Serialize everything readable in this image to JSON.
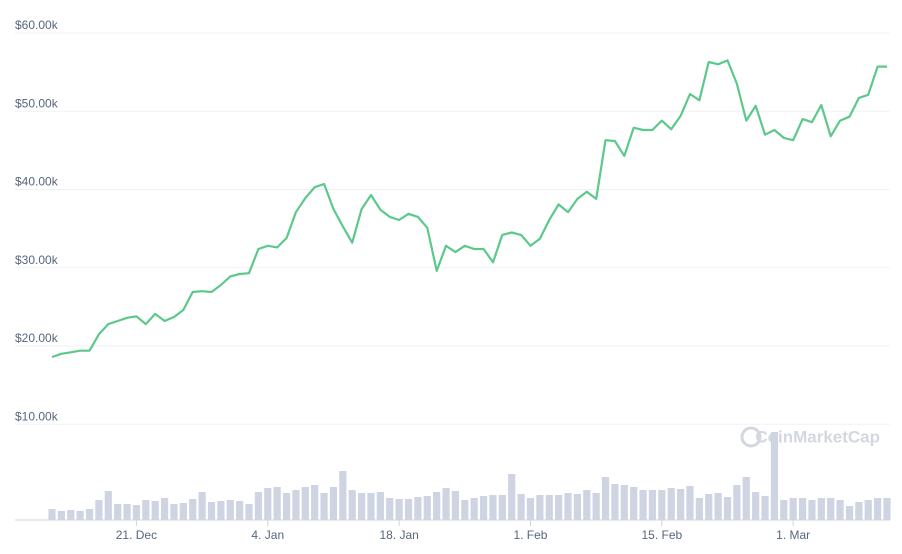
{
  "chart_data": {
    "type": "line",
    "categories": [
      "12. Dec",
      "13. Dec",
      "14. Dec",
      "15. Dec",
      "16. Dec",
      "17. Dec",
      "18. Dec",
      "19. Dec",
      "20. Dec",
      "21. Dec",
      "22. Dec",
      "23. Dec",
      "24. Dec",
      "25. Dec",
      "26. Dec",
      "27. Dec",
      "28. Dec",
      "29. Dec",
      "30. Dec",
      "31. Dec",
      "1. Jan",
      "2. Jan",
      "3. Jan",
      "4. Jan",
      "5. Jan",
      "6. Jan",
      "7. Jan",
      "8. Jan",
      "9. Jan",
      "10. Jan",
      "11. Jan",
      "12. Jan",
      "13. Jan",
      "14. Jan",
      "15. Jan",
      "16. Jan",
      "17. Jan",
      "18. Jan",
      "19. Jan",
      "20. Jan",
      "21. Jan",
      "22. Jan",
      "23. Jan",
      "24. Jan",
      "25. Jan",
      "26. Jan",
      "27. Jan",
      "28. Jan",
      "29. Jan",
      "30. Jan",
      "31. Jan",
      "1. Feb",
      "2. Feb",
      "3. Feb",
      "4. Feb",
      "5. Feb",
      "6. Feb",
      "7. Feb",
      "8. Feb",
      "9. Feb",
      "10. Feb",
      "11. Feb",
      "12. Feb",
      "13. Feb",
      "14. Feb",
      "15. Feb",
      "16. Feb",
      "17. Feb",
      "18. Feb",
      "19. Feb",
      "20. Feb",
      "21. Feb",
      "22. Feb",
      "23. Feb",
      "24. Feb",
      "25. Feb",
      "26. Feb",
      "27. Feb",
      "28. Feb",
      "1. Mar",
      "2. Mar",
      "3. Mar",
      "4. Mar",
      "5. Mar",
      "6. Mar",
      "7. Mar",
      "8. Mar",
      "9. Mar",
      "10. Mar",
      "11. Mar"
    ],
    "values": [
      18600,
      19000,
      19200,
      19400,
      19400,
      21500,
      22800,
      23200,
      23600,
      23800,
      22800,
      24100,
      23200,
      23700,
      24600,
      26900,
      27000,
      26900,
      27800,
      28900,
      29200,
      29300,
      32400,
      32800,
      32600,
      33800,
      37100,
      38900,
      40300,
      40700,
      37500,
      35300,
      33200,
      37500,
      39300,
      37400,
      36500,
      36100,
      36900,
      36500,
      35100,
      29600,
      32800,
      32000,
      32800,
      32400,
      32400,
      30700,
      34200,
      34500,
      34200,
      32800,
      33700,
      36100,
      38100,
      37100,
      38800,
      39700,
      38800,
      46300,
      46200,
      44300,
      47900,
      47600,
      47600,
      48800,
      47700,
      49400,
      52200,
      51400,
      56300,
      56000,
      56500,
      53500,
      48800,
      50700,
      47000,
      47600,
      46600,
      46300,
      49000,
      48600,
      50800,
      46800,
      48800,
      49300,
      51700,
      52100,
      55700,
      55700
    ],
    "color": "#5cc98b",
    "volume": [
      11,
      9,
      10,
      9,
      11,
      20,
      29,
      16,
      16,
      15,
      20,
      19,
      22,
      16,
      17,
      21,
      28,
      18,
      19,
      20,
      19,
      16,
      28,
      32,
      33,
      27,
      30,
      33,
      35,
      27,
      33,
      49,
      30,
      27,
      27,
      28,
      22,
      21,
      21,
      23,
      24,
      28,
      32,
      29,
      20,
      22,
      24,
      25,
      25,
      46,
      26,
      22,
      25,
      25,
      25,
      27,
      26,
      30,
      27,
      43,
      36,
      35,
      33,
      30,
      30,
      30,
      32,
      31,
      34,
      22,
      26,
      27,
      23,
      35,
      43,
      28,
      24,
      88,
      20,
      22,
      22,
      20,
      22,
      22,
      20,
      14,
      18,
      20,
      22,
      22
    ],
    "volume_color": "#cfd4e3",
    "ylim": [
      0,
      60000
    ],
    "yticks": [
      {
        "value": 10000,
        "label": "$10.00k"
      },
      {
        "value": 20000,
        "label": "$20.00k"
      },
      {
        "value": 30000,
        "label": "$30.00k"
      },
      {
        "value": 40000,
        "label": "$40.00k"
      },
      {
        "value": 50000,
        "label": "$50.00k"
      },
      {
        "value": 60000,
        "label": "$60.00k"
      }
    ],
    "xticks": [
      "21. Dec",
      "4. Jan",
      "18. Jan",
      "1. Feb",
      "15. Feb",
      "1. Mar"
    ],
    "grid": true,
    "watermark": "CoinMarketCap"
  }
}
